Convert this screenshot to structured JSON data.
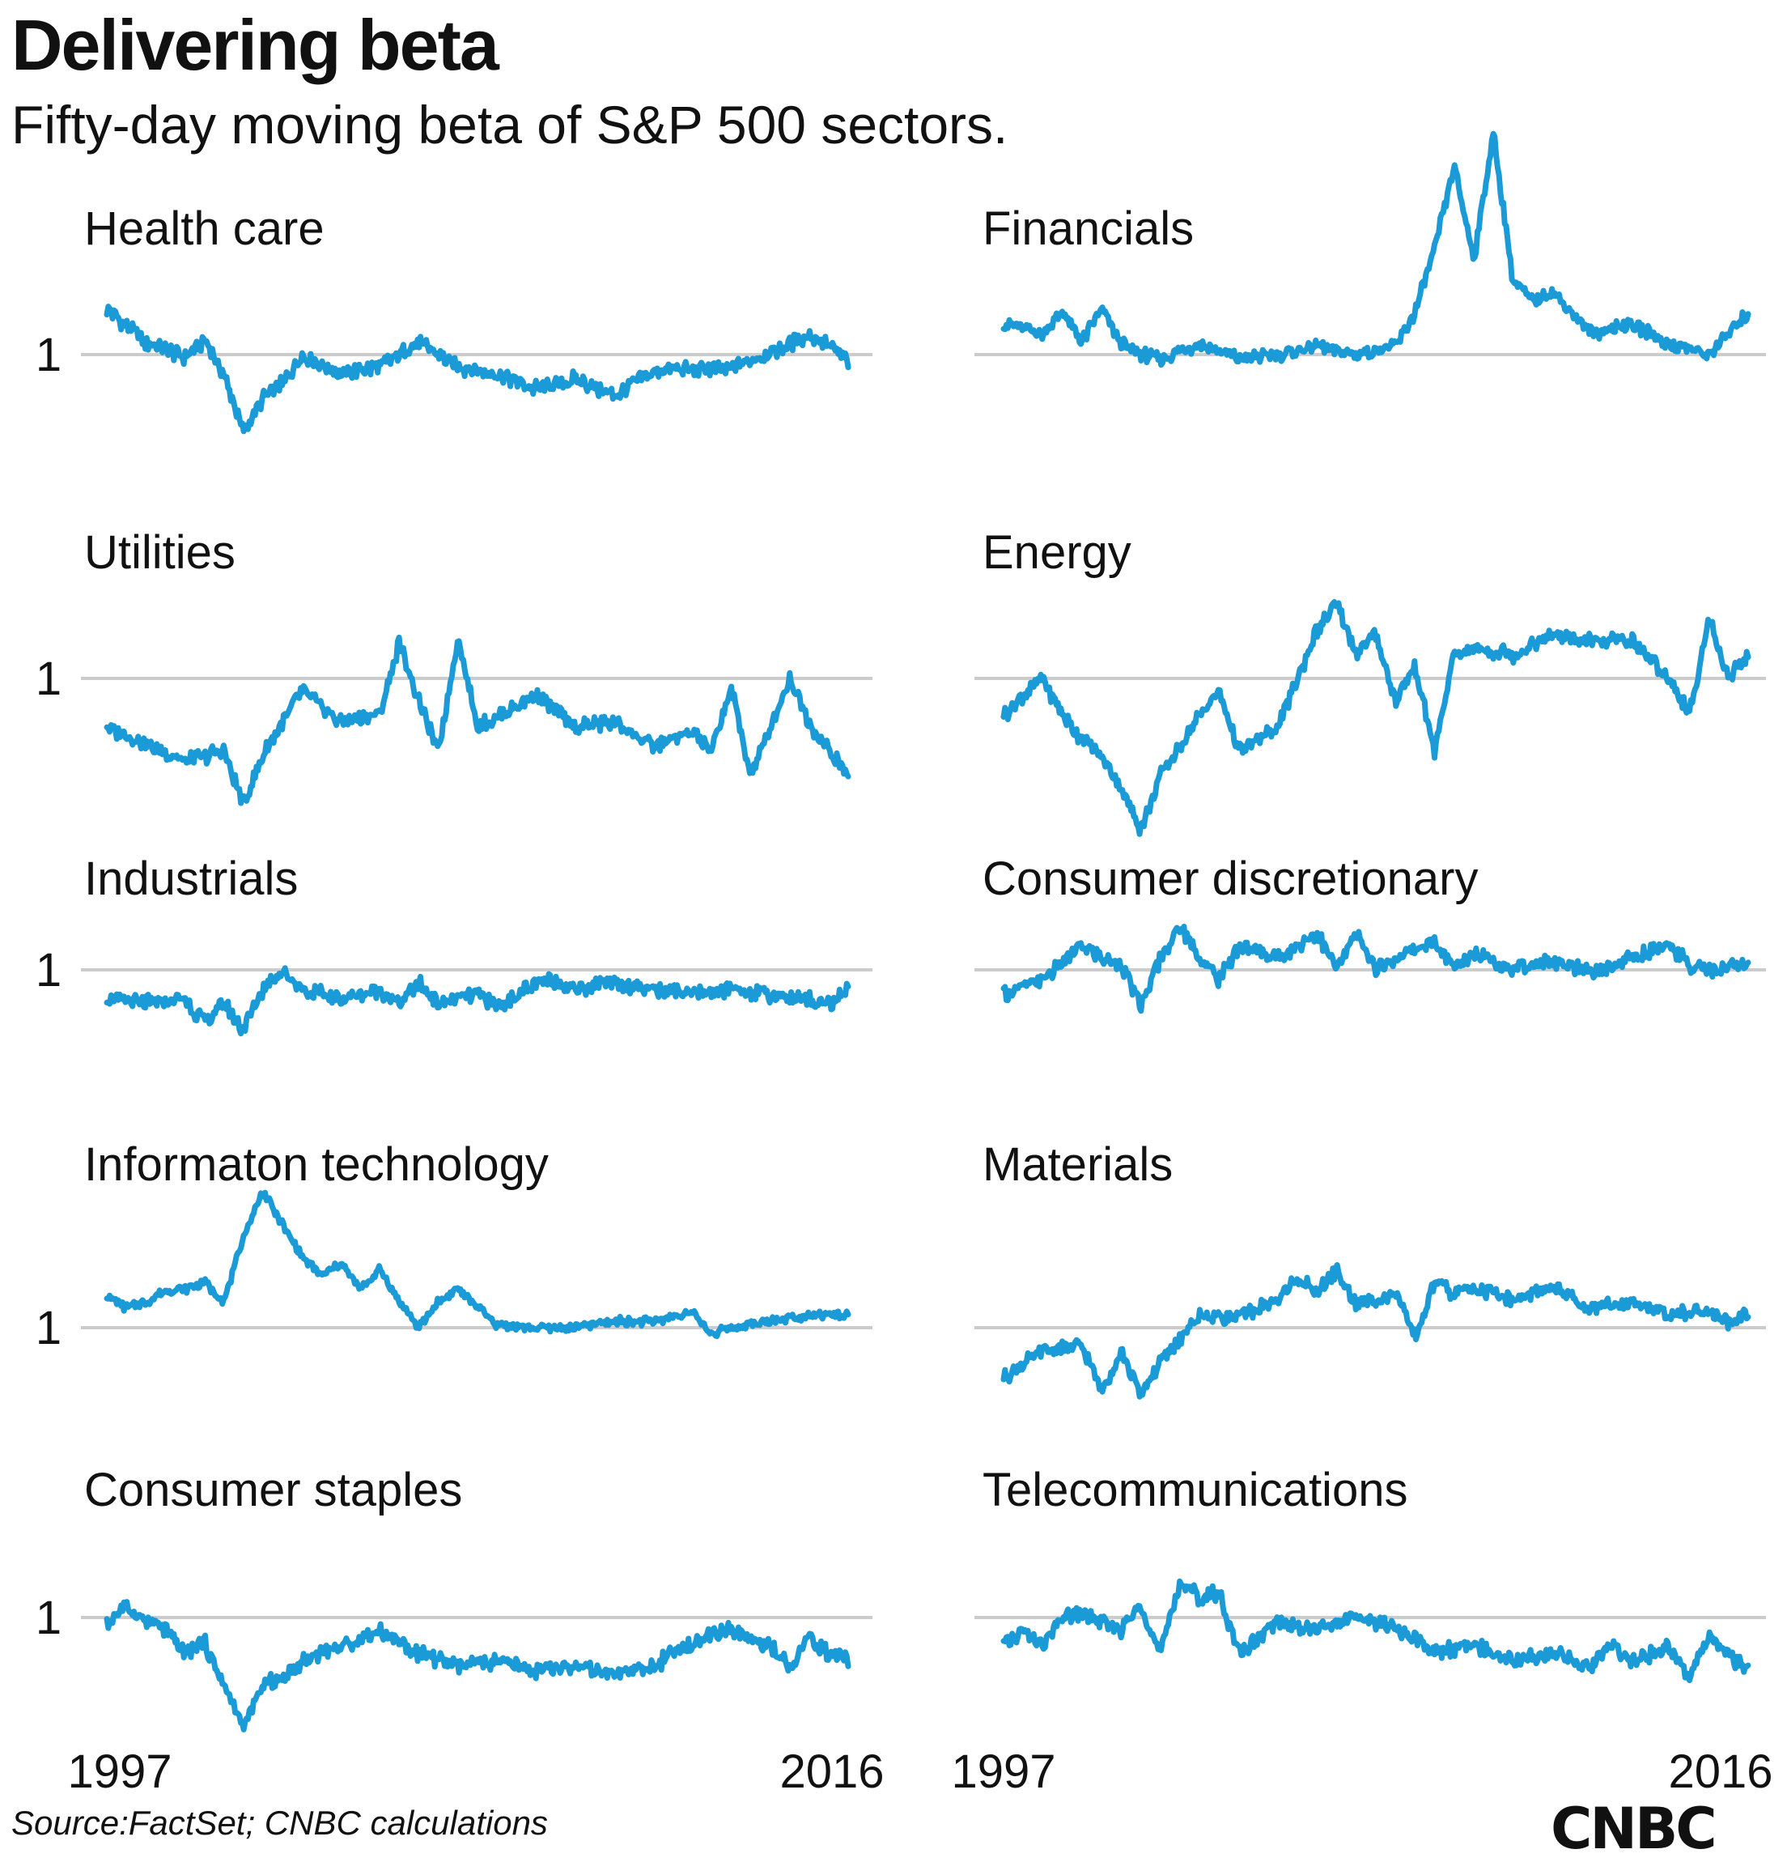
{
  "title": "Delivering beta",
  "subtitle": "Fifty-day moving beta of S&P 500 sectors.",
  "source": "Source:FactSet; CNBC calculations",
  "logo": "CNBC",
  "colors": {
    "line": "#1a9ad6",
    "reference": "#cccccc",
    "text": "#111111"
  },
  "chart_data": [
    {
      "type": "line",
      "title": "Health care",
      "x_range": [
        1997,
        2016
      ],
      "x_tick_labels": [
        "1997",
        "2016"
      ],
      "y_ticks": [
        1
      ],
      "y_tick_labels": [
        "1"
      ],
      "ylim": [
        0.55,
        1.35
      ],
      "x": [
        1997,
        1997.5,
        1998,
        1998.5,
        1999,
        1999.5,
        2000,
        2000.5,
        2001,
        2001.5,
        2002,
        2002.5,
        2003,
        2004,
        2005,
        2006,
        2007,
        2008,
        2009,
        2010,
        2011,
        2012,
        2013,
        2014,
        2015,
        2015.5,
        2016
      ],
      "y": [
        1.19,
        1.12,
        1.05,
        1.02,
        0.99,
        1.06,
        0.92,
        0.68,
        0.82,
        0.88,
        1.0,
        0.96,
        0.92,
        0.95,
        1.05,
        0.95,
        0.92,
        0.86,
        0.9,
        0.83,
        0.93,
        0.94,
        0.94,
        1.01,
        1.08,
        1.04,
        0.97
      ]
    },
    {
      "type": "line",
      "title": "Financials",
      "x_range": [
        1997,
        2016
      ],
      "x_tick_labels": [
        "1997",
        "2016"
      ],
      "y_ticks": [
        1
      ],
      "y_tick_labels": [
        "1"
      ],
      "ylim": [
        0.85,
        2.1
      ],
      "x": [
        1997,
        1998,
        1998.5,
        1999,
        1999.5,
        2000,
        2000.5,
        2001,
        2002,
        2003,
        2004,
        2005,
        2006,
        2007,
        2007.5,
        2008,
        2008.5,
        2009,
        2009.5,
        2010,
        2010.5,
        2011,
        2012,
        2013,
        2014,
        2015,
        2015.5,
        2016
      ],
      "y": [
        1.15,
        1.1,
        1.2,
        1.06,
        1.22,
        1.05,
        1.0,
        0.98,
        1.05,
        0.98,
        1.0,
        1.04,
        1.0,
        1.04,
        1.2,
        1.5,
        1.9,
        1.45,
        2.05,
        1.35,
        1.25,
        1.3,
        1.1,
        1.15,
        1.05,
        1.0,
        1.1,
        1.2
      ]
    },
    {
      "type": "line",
      "title": "Utilities",
      "x_range": [
        1997,
        2016
      ],
      "x_tick_labels": [
        "1997",
        "2016"
      ],
      "y_ticks": [
        1
      ],
      "y_tick_labels": [
        "1"
      ],
      "ylim": [
        0.3,
        1.3
      ],
      "x": [
        1997,
        1998,
        1999,
        2000,
        2000.5,
        2001,
        2001.5,
        2002,
        2003,
        2004,
        2004.5,
        2005,
        2005.5,
        2006,
        2006.5,
        2007,
        2008,
        2009,
        2010,
        2011,
        2012,
        2012.5,
        2013,
        2013.5,
        2014,
        2014.5,
        2015,
        2015.5,
        2016
      ],
      "y": [
        0.8,
        0.73,
        0.66,
        0.7,
        0.48,
        0.68,
        0.82,
        0.95,
        0.82,
        0.85,
        1.15,
        0.9,
        0.7,
        1.17,
        0.8,
        0.84,
        0.93,
        0.8,
        0.82,
        0.72,
        0.78,
        0.7,
        0.96,
        0.6,
        0.8,
        1.0,
        0.82,
        0.7,
        0.6
      ]
    },
    {
      "type": "line",
      "title": "Energy",
      "x_range": [
        1997,
        2016
      ],
      "x_tick_labels": [
        "1997",
        "2016"
      ],
      "y_ticks": [
        1
      ],
      "y_tick_labels": [
        "1"
      ],
      "ylim": [
        0.3,
        1.4
      ],
      "x": [
        1997,
        1998,
        1998.5,
        1999,
        1999.5,
        2000,
        2000.5,
        2001,
        2002,
        2002.5,
        2003,
        2004,
        2004.5,
        2005,
        2005.5,
        2006,
        2006.5,
        2007,
        2007.5,
        2008,
        2008.5,
        2009,
        2010,
        2011,
        2012,
        2013,
        2014,
        2014.5,
        2015,
        2015.5,
        2016
      ],
      "y": [
        0.85,
        1.0,
        0.85,
        0.75,
        0.68,
        0.55,
        0.38,
        0.6,
        0.85,
        0.95,
        0.7,
        0.8,
        1.0,
        1.2,
        1.3,
        1.1,
        1.18,
        0.9,
        1.05,
        0.7,
        1.1,
        1.12,
        1.1,
        1.18,
        1.15,
        1.16,
        1.0,
        0.85,
        1.25,
        1.0,
        1.1
      ]
    },
    {
      "type": "line",
      "title": "Industrials",
      "x_range": [
        1997,
        2016
      ],
      "x_tick_labels": [
        "1997",
        "2016"
      ],
      "y_ticks": [
        1
      ],
      "y_tick_labels": [
        "1"
      ],
      "ylim": [
        0.55,
        1.25
      ],
      "x": [
        1997,
        1998,
        1999,
        1999.5,
        2000,
        2000.5,
        2001,
        2001.5,
        2002,
        2002.5,
        2003,
        2004,
        2004.5,
        2005,
        2005.5,
        2006,
        2006.5,
        2007,
        2008,
        2008.5,
        2009,
        2010,
        2011,
        2012,
        2013,
        2014,
        2015,
        2015.5,
        2016
      ],
      "y": [
        0.88,
        0.86,
        0.88,
        0.78,
        0.86,
        0.75,
        0.92,
        1.0,
        0.92,
        0.9,
        0.88,
        0.92,
        0.86,
        0.95,
        0.86,
        0.88,
        0.9,
        0.85,
        0.94,
        0.96,
        0.92,
        0.95,
        0.92,
        0.9,
        0.92,
        0.9,
        0.88,
        0.86,
        0.92
      ]
    },
    {
      "type": "line",
      "title": "Consumer discretionary",
      "x_range": [
        1997,
        2016
      ],
      "x_tick_labels": [
        "1997",
        "2016"
      ],
      "y_ticks": [
        1
      ],
      "y_tick_labels": [
        "1"
      ],
      "ylim": [
        0.7,
        1.35
      ],
      "x": [
        1997,
        1997.5,
        1998,
        1999,
        1999.5,
        2000,
        2000.5,
        2001,
        2001.5,
        2002,
        2002.5,
        2003,
        2004,
        2005,
        2005.5,
        2006,
        2006.5,
        2007,
        2008,
        2008.5,
        2009,
        2010,
        2011,
        2012,
        2013,
        2014,
        2014.5,
        2015,
        2016
      ],
      "y": [
        0.9,
        0.93,
        0.96,
        1.1,
        1.05,
        1.02,
        0.85,
        1.05,
        1.18,
        1.05,
        0.96,
        1.1,
        1.05,
        1.15,
        1.0,
        1.15,
        1.0,
        1.05,
        1.12,
        1.0,
        1.08,
        1.0,
        1.04,
        0.98,
        1.05,
        1.1,
        1.02,
        1.0,
        1.02
      ]
    },
    {
      "type": "line",
      "title": "Informaton technology",
      "x_range": [
        1997,
        2016
      ],
      "x_tick_labels": [
        "1997",
        "2016"
      ],
      "y_ticks": [
        1
      ],
      "y_tick_labels": [
        "1"
      ],
      "ylim": [
        0.7,
        2.2
      ],
      "x": [
        1997,
        1997.5,
        1998,
        1998.5,
        1999,
        1999.5,
        2000,
        2000.5,
        2001,
        2001.5,
        2002,
        2002.5,
        2003,
        2003.5,
        2004,
        2004.5,
        2005,
        2005.5,
        2006,
        2007,
        2008,
        2009,
        2010,
        2011,
        2012,
        2012.5,
        2013,
        2014,
        2015,
        2016
      ],
      "y": [
        1.25,
        1.15,
        1.2,
        1.28,
        1.3,
        1.35,
        1.2,
        1.7,
        2.05,
        1.8,
        1.55,
        1.4,
        1.5,
        1.3,
        1.45,
        1.2,
        1.0,
        1.2,
        1.3,
        1.02,
        1.0,
        1.0,
        1.05,
        1.05,
        1.12,
        0.95,
        1.0,
        1.05,
        1.1,
        1.1
      ]
    },
    {
      "type": "line",
      "title": "Materials",
      "x_range": [
        1997,
        2016
      ],
      "x_tick_labels": [
        "1997",
        "2016"
      ],
      "y_ticks": [
        1
      ],
      "y_tick_labels": [
        "1"
      ],
      "ylim": [
        0.6,
        1.5
      ],
      "x": [
        1997,
        1998,
        1999,
        1999.5,
        2000,
        2000.5,
        2001,
        2001.5,
        2002,
        2003,
        2004,
        2004.5,
        2005,
        2005.5,
        2006,
        2007,
        2007.5,
        2008,
        2008.5,
        2009,
        2010,
        2011,
        2012,
        2013,
        2014,
        2015,
        2015.5,
        2016
      ],
      "y": [
        0.78,
        0.9,
        0.92,
        0.72,
        0.9,
        0.7,
        0.85,
        0.95,
        1.05,
        1.05,
        1.12,
        1.22,
        1.15,
        1.25,
        1.1,
        1.15,
        0.95,
        1.2,
        1.15,
        1.18,
        1.12,
        1.18,
        1.08,
        1.12,
        1.05,
        1.08,
        1.02,
        1.08
      ]
    },
    {
      "type": "line",
      "title": "Consumer staples",
      "x_range": [
        1997,
        2016
      ],
      "x_tick_labels": [
        "1997",
        "2016"
      ],
      "y_ticks": [
        1
      ],
      "y_tick_labels": [
        "1"
      ],
      "ylim": [
        0.45,
        1.15
      ],
      "x": [
        1997,
        1997.5,
        1998,
        1998.5,
        1999,
        1999.5,
        2000,
        2000.5,
        2001,
        2001.5,
        2002,
        2002.5,
        2003,
        2004,
        2005,
        2006,
        2007,
        2008,
        2009,
        2010,
        2011,
        2012,
        2013,
        2014,
        2014.5,
        2015,
        2015.5,
        2016
      ],
      "y": [
        0.97,
        1.05,
        0.98,
        0.95,
        0.85,
        0.9,
        0.72,
        0.55,
        0.72,
        0.75,
        0.82,
        0.86,
        0.88,
        0.95,
        0.85,
        0.8,
        0.82,
        0.78,
        0.8,
        0.76,
        0.8,
        0.9,
        0.95,
        0.88,
        0.8,
        0.92,
        0.85,
        0.83
      ]
    },
    {
      "type": "line",
      "title": "Telecommunications",
      "x_range": [
        1997,
        2016
      ],
      "x_tick_labels": [
        "1997",
        "2016"
      ],
      "y_ticks": [
        1
      ],
      "y_tick_labels": [
        "1"
      ],
      "ylim": [
        0.55,
        1.35
      ],
      "x": [
        1997,
        1997.5,
        1998,
        1998.5,
        1999,
        1999.5,
        2000,
        2000.5,
        2001,
        2001.5,
        2002,
        2002.5,
        2003,
        2004,
        2005,
        2006,
        2007,
        2008,
        2009,
        2010,
        2011,
        2012,
        2012.5,
        2013,
        2014,
        2014.5,
        2015,
        2015.5,
        2016
      ],
      "y": [
        0.88,
        0.95,
        0.88,
        1.0,
        1.02,
        0.98,
        0.95,
        1.05,
        0.85,
        1.15,
        1.08,
        1.1,
        0.85,
        0.98,
        0.95,
        1.0,
        0.96,
        0.86,
        0.88,
        0.83,
        0.85,
        0.8,
        0.9,
        0.82,
        0.88,
        0.75,
        0.92,
        0.85,
        0.78
      ]
    }
  ]
}
